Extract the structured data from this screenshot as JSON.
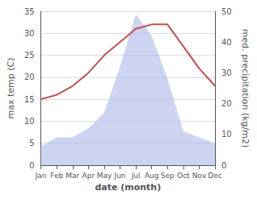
{
  "chart_data": {
    "type": "line",
    "xlabel": "date (month)",
    "ylabel": "max temp (C)",
    "y2label": "med. precipitation (kg/m2)",
    "categories": [
      "Jan",
      "Feb",
      "Mar",
      "Apr",
      "May",
      "Jun",
      "Jul",
      "Aug",
      "Sep",
      "Oct",
      "Nov",
      "Dec"
    ],
    "series": [
      {
        "type": "area",
        "axis": "y2",
        "color": "#aab8e8",
        "values": [
          6,
          9,
          9,
          12,
          17,
          32,
          49,
          42,
          28,
          11,
          9,
          7
        ]
      },
      {
        "type": "line",
        "color": "#c0504d",
        "values": [
          15,
          16,
          18,
          21,
          25,
          28,
          31,
          32,
          32,
          27,
          22,
          18
        ]
      }
    ],
    "ylim": [
      0,
      35
    ],
    "yticks": [
      0,
      5,
      10,
      15,
      20,
      25,
      30,
      35
    ],
    "y2lim": [
      0,
      50
    ],
    "y2ticks": [
      0,
      10,
      20,
      30,
      40,
      50
    ],
    "grid": true
  }
}
